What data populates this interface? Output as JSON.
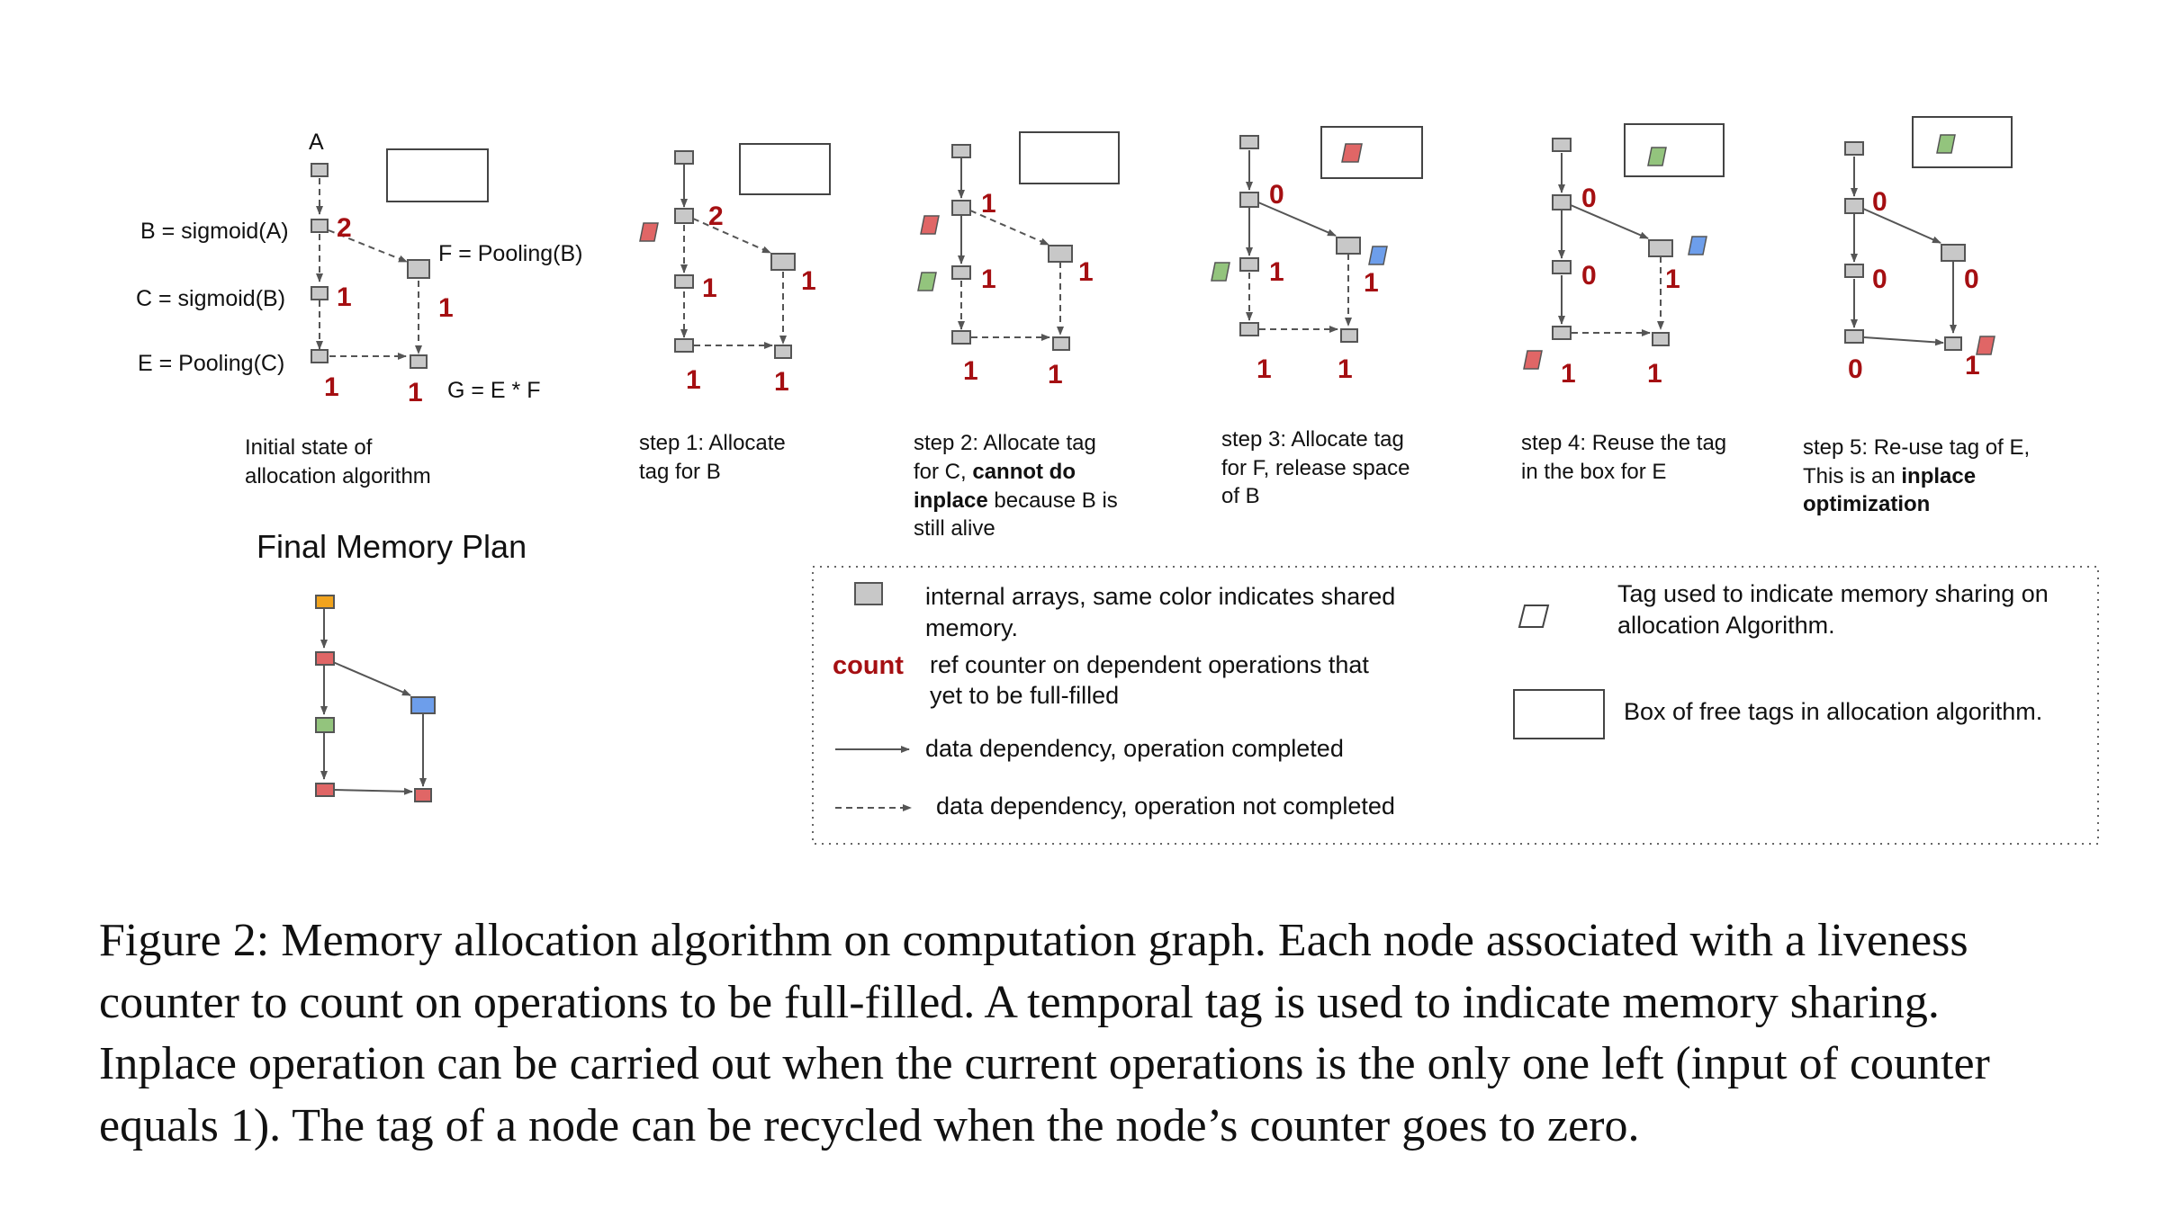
{
  "panel0": {
    "label_a": "A",
    "label_b": "B = sigmoid(A)",
    "label_c": "C = sigmoid(B)",
    "label_e": "E = Pooling(C)",
    "label_f": "F = Pooling(B)",
    "label_g": "G = E * F",
    "counts": {
      "b": "2",
      "c": "1",
      "e": "1",
      "f": "1",
      "g": "1"
    },
    "caption": [
      "Initial state of",
      "allocation algorithm"
    ]
  },
  "step1": {
    "counts": {
      "b": "2",
      "c": "1",
      "e": "1",
      "f": "1",
      "g": "1"
    },
    "caption": [
      "step 1: Allocate",
      "tag for B"
    ]
  },
  "step2": {
    "counts": {
      "b": "1",
      "c": "1",
      "f": "1",
      "e": "1",
      "g": "1"
    },
    "caption": {
      "line1": "step 2: Allocate tag",
      "line2_pre": "for C, ",
      "line2_bold": "cannot do",
      "line3_bold": "inplace",
      "line3_post": " because B is",
      "line4": "still alive"
    }
  },
  "step3": {
    "counts": {
      "b": "0",
      "c": "1",
      "f": "1",
      "e": "1",
      "g": "1"
    },
    "caption": [
      "step 3: Allocate tag",
      "for F, release space",
      "of B"
    ]
  },
  "step4": {
    "counts": {
      "b": "0",
      "c": "0",
      "f": "1",
      "e": "1",
      "g": "1"
    },
    "caption": [
      "step 4: Reuse the tag",
      "in the box for E"
    ]
  },
  "step5": {
    "counts": {
      "b": "0",
      "c": "0",
      "f": "0",
      "e": "0",
      "g": "1"
    },
    "caption": {
      "line1": "step 5: Re-use tag of E,",
      "line2_pre": "This is an ",
      "line2_bold": "inplace",
      "line3_bold": "optimization"
    }
  },
  "final_plan": {
    "title": "Final Memory Plan"
  },
  "legend": {
    "internal_arrays": [
      "internal arrays, same color indicates shared",
      "memory."
    ],
    "count_label": "count",
    "count_desc": [
      "ref counter on dependent operations that",
      "yet to be full-filled"
    ],
    "completed": "data dependency, operation completed",
    "not_completed": "data dependency, operation not completed",
    "tag_desc": [
      "Tag used to indicate memory sharing on",
      "allocation Algorithm."
    ],
    "box_desc": "Box of free tags in allocation algorithm."
  },
  "colors": {
    "node_gray": "#c8c8c8",
    "count_red": "#a50f12",
    "tag_red": "#e06666",
    "tag_green": "#93c47d",
    "tag_blue": "#6d9eeb",
    "tag_orange": "#f1a31d"
  },
  "caption": {
    "lines": [
      "Figure 2: Memory allocation algorithm on computation graph. Each node associated with a liveness",
      "counter to count on operations to be full-filled. A temporal tag is used to indicate memory sharing.",
      "Inplace operation can be carried out when the current operations is the only one left (input of counter",
      "equals 1). The tag of a node can be recycled when the node’s counter goes to zero."
    ]
  }
}
